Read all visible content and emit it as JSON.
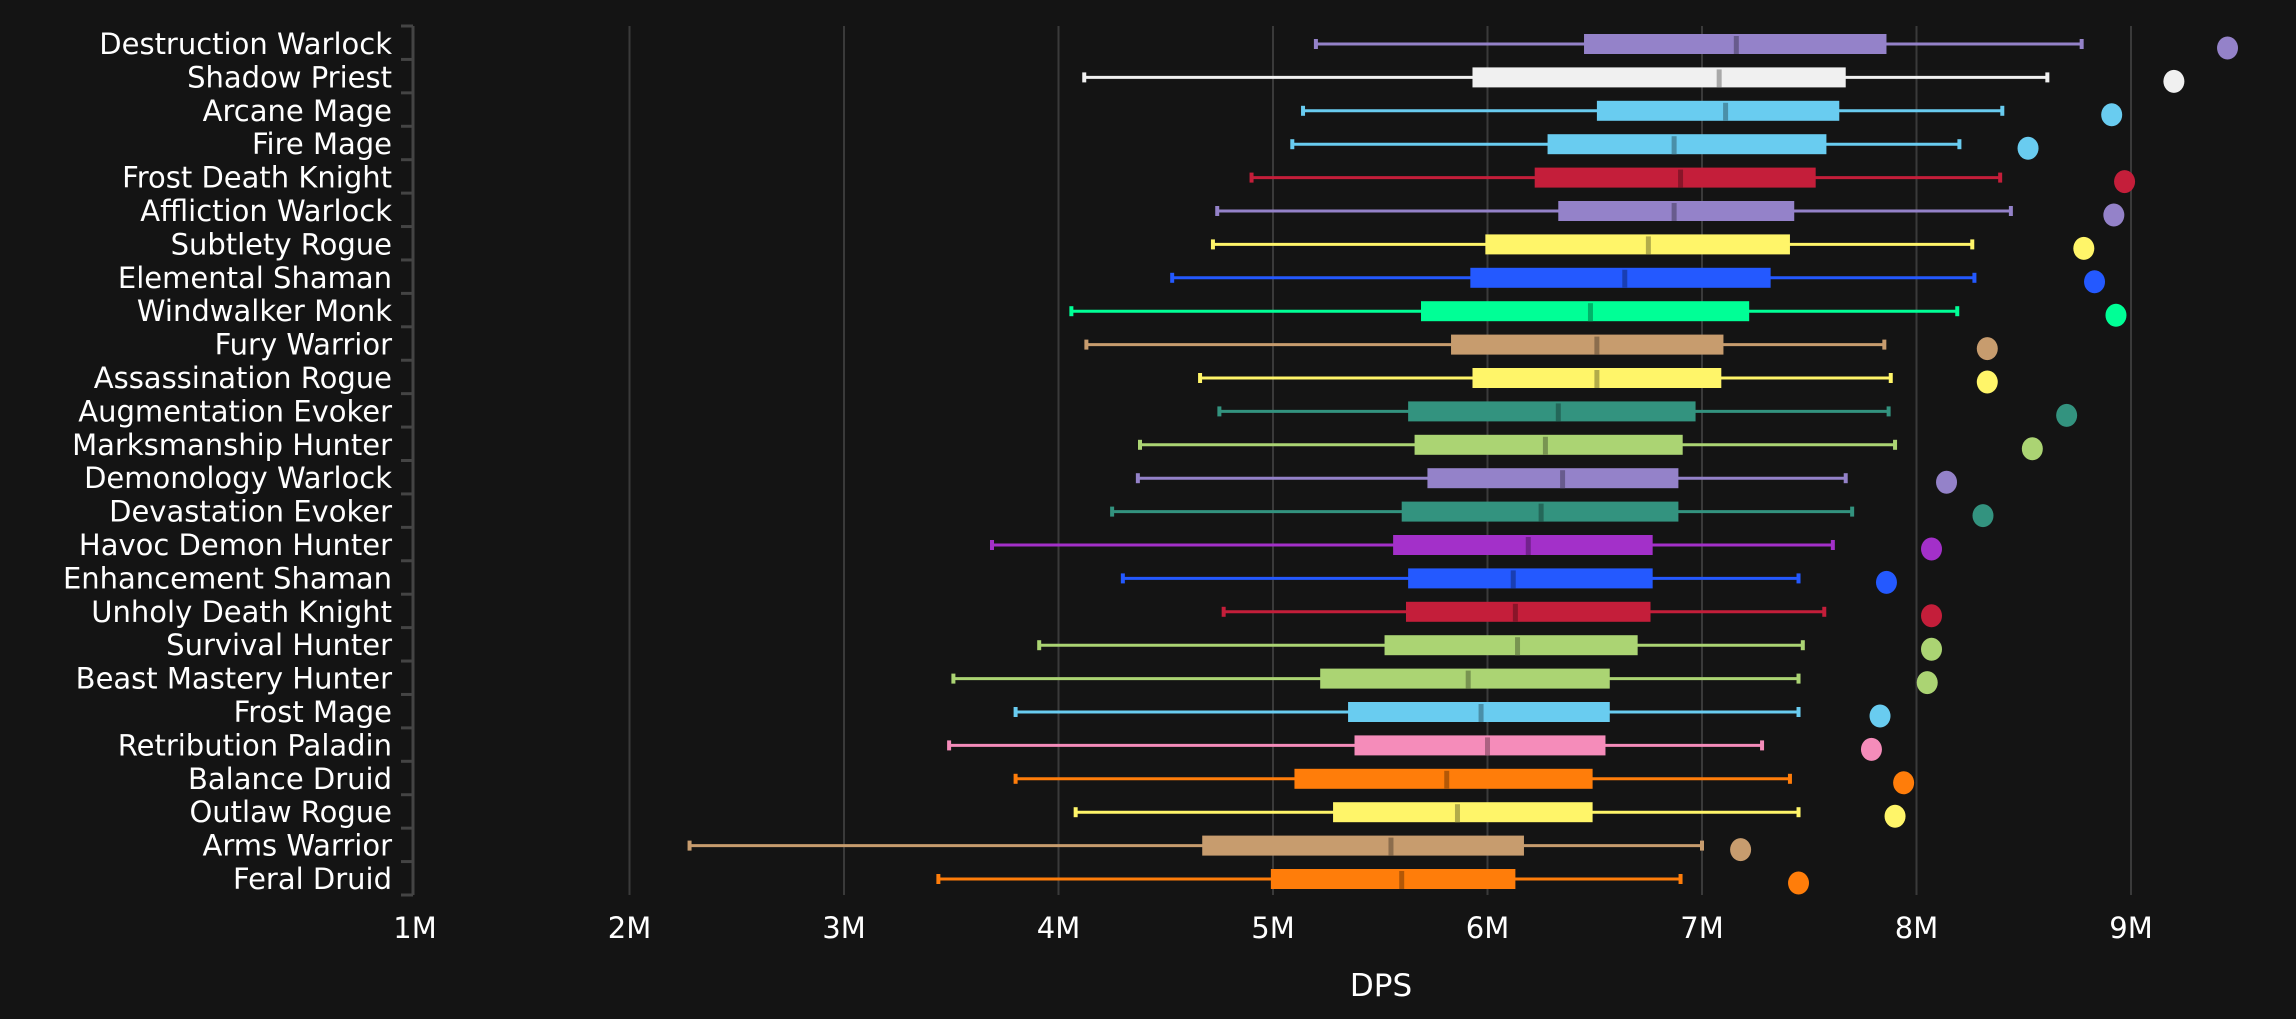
{
  "chart_data": {
    "type": "boxplot",
    "title": "",
    "xlabel": "DPS",
    "ylabel": "",
    "xlim": [
      1,
      9.6
    ],
    "x_unit": "M",
    "x_ticks": [
      1,
      2,
      3,
      4,
      5,
      6,
      7,
      8,
      9
    ],
    "x_tick_labels": [
      "1M",
      "2M",
      "3M",
      "4M",
      "5M",
      "6M",
      "7M",
      "8M",
      "9M"
    ],
    "grid": "vertical",
    "legend": "none",
    "series_fields": [
      "whisker_low",
      "q1",
      "median",
      "q3",
      "whisker_high",
      "max_point"
    ],
    "series": [
      {
        "name": "Destruction Warlock",
        "color": "#9482c9",
        "values": [
          5.2,
          6.45,
          7.16,
          7.86,
          8.77,
          9.45
        ]
      },
      {
        "name": "Shadow Priest",
        "color": "#f0f0f0",
        "values": [
          4.12,
          5.93,
          7.08,
          7.67,
          8.61,
          9.2
        ]
      },
      {
        "name": "Arcane Mage",
        "color": "#69ccf0",
        "values": [
          5.14,
          6.51,
          7.11,
          7.64,
          8.4,
          8.91
        ]
      },
      {
        "name": "Fire Mage",
        "color": "#69ccf0",
        "values": [
          5.09,
          6.28,
          6.87,
          7.58,
          8.2,
          8.52
        ]
      },
      {
        "name": "Frost Death Knight",
        "color": "#c41e3a",
        "values": [
          4.9,
          6.22,
          6.9,
          7.53,
          8.39,
          8.97
        ]
      },
      {
        "name": "Affliction Warlock",
        "color": "#9482c9",
        "values": [
          4.74,
          6.33,
          6.87,
          7.43,
          8.44,
          8.92
        ]
      },
      {
        "name": "Subtlety Rogue",
        "color": "#fff569",
        "values": [
          4.72,
          5.99,
          6.75,
          7.41,
          8.26,
          8.78
        ]
      },
      {
        "name": "Elemental Shaman",
        "color": "#2459ff",
        "values": [
          4.53,
          5.92,
          6.64,
          7.32,
          8.27,
          8.83
        ]
      },
      {
        "name": "Windwalker Monk",
        "color": "#00ff96",
        "values": [
          4.06,
          5.69,
          6.48,
          7.22,
          8.19,
          8.93
        ]
      },
      {
        "name": "Fury Warrior",
        "color": "#c79c6e",
        "values": [
          4.13,
          5.83,
          6.51,
          7.1,
          7.85,
          8.33
        ]
      },
      {
        "name": "Assassination Rogue",
        "color": "#fff569",
        "values": [
          4.66,
          5.93,
          6.51,
          7.09,
          7.88,
          8.33
        ]
      },
      {
        "name": "Augmentation Evoker",
        "color": "#33937f",
        "values": [
          4.75,
          5.63,
          6.33,
          6.97,
          7.87,
          8.7
        ]
      },
      {
        "name": "Marksmanship Hunter",
        "color": "#abd473",
        "values": [
          4.38,
          5.66,
          6.27,
          6.91,
          7.9,
          8.54
        ]
      },
      {
        "name": "Demonology Warlock",
        "color": "#9482c9",
        "values": [
          4.37,
          5.72,
          6.35,
          6.89,
          7.67,
          8.14
        ]
      },
      {
        "name": "Devastation Evoker",
        "color": "#33937f",
        "values": [
          4.25,
          5.6,
          6.25,
          6.89,
          7.7,
          8.31
        ]
      },
      {
        "name": "Havoc Demon Hunter",
        "color": "#a330c9",
        "values": [
          3.69,
          5.56,
          6.19,
          6.77,
          7.61,
          8.07
        ]
      },
      {
        "name": "Enhancement Shaman",
        "color": "#2459ff",
        "values": [
          4.3,
          5.63,
          6.12,
          6.77,
          7.45,
          7.86
        ]
      },
      {
        "name": "Unholy Death Knight",
        "color": "#c41e3a",
        "values": [
          4.77,
          5.62,
          6.13,
          6.76,
          7.57,
          8.07
        ]
      },
      {
        "name": "Survival Hunter",
        "color": "#abd473",
        "values": [
          3.91,
          5.52,
          6.14,
          6.7,
          7.47,
          8.07
        ]
      },
      {
        "name": "Beast Mastery Hunter",
        "color": "#abd473",
        "values": [
          3.51,
          5.22,
          5.91,
          6.57,
          7.45,
          8.05
        ]
      },
      {
        "name": "Frost Mage",
        "color": "#69ccf0",
        "values": [
          3.8,
          5.35,
          5.97,
          6.57,
          7.45,
          7.83
        ]
      },
      {
        "name": "Retribution Paladin",
        "color": "#f58cba",
        "values": [
          3.49,
          5.38,
          6.0,
          6.55,
          7.28,
          7.79
        ]
      },
      {
        "name": "Balance Druid",
        "color": "#ff7d0a",
        "values": [
          3.8,
          5.1,
          5.81,
          6.49,
          7.41,
          7.94
        ]
      },
      {
        "name": "Outlaw Rogue",
        "color": "#fff569",
        "values": [
          4.08,
          5.28,
          5.86,
          6.49,
          7.45,
          7.9
        ]
      },
      {
        "name": "Arms Warrior",
        "color": "#c79c6e",
        "values": [
          2.28,
          4.67,
          5.55,
          6.17,
          7.0,
          7.18
        ]
      },
      {
        "name": "Feral Druid",
        "color": "#ff7d0a",
        "values": [
          3.44,
          4.99,
          5.6,
          6.13,
          6.9,
          7.45
        ]
      }
    ]
  },
  "colors": {
    "background": "#141414",
    "grid": "#3a3a3a",
    "axis": "#444444",
    "text": "#ffffff"
  }
}
